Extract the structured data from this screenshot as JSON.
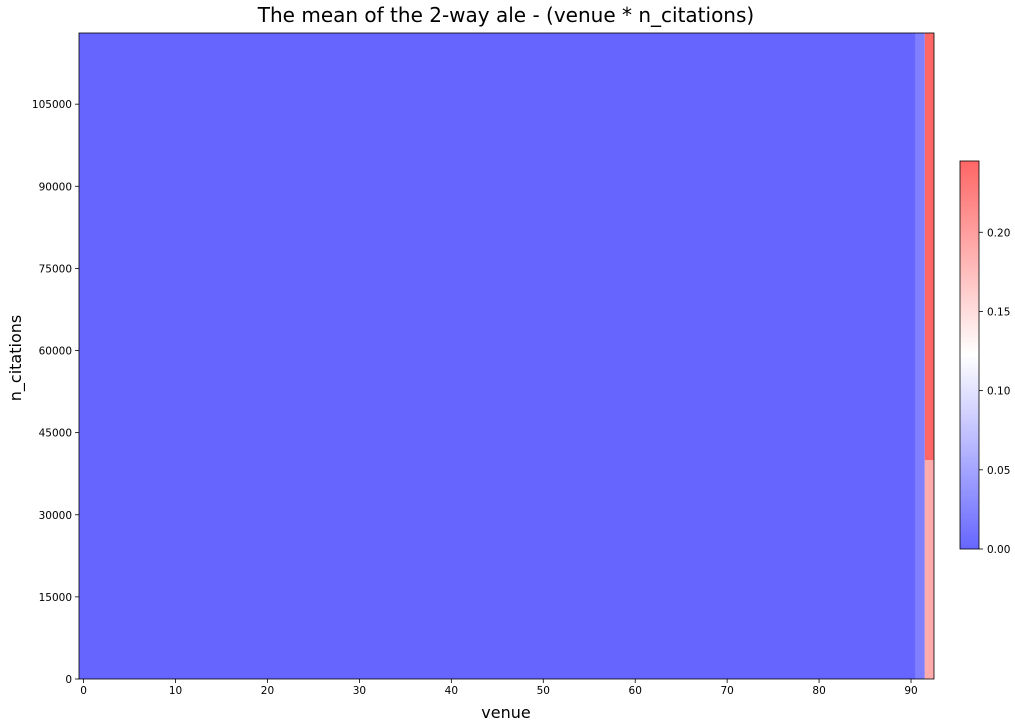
{
  "chart_data": {
    "type": "heatmap",
    "title": "The mean of the 2-way ale - (venue * n_citations)",
    "xlabel": "venue",
    "ylabel": "n_citations",
    "xlim": [
      -0.5,
      92.5
    ],
    "ylim": [
      0,
      118000
    ],
    "x_ticks": [
      0,
      10,
      20,
      30,
      40,
      50,
      60,
      70,
      80,
      90
    ],
    "y_ticks": [
      0,
      15000,
      30000,
      45000,
      60000,
      75000,
      90000,
      105000
    ],
    "colormap": [
      "#6666ff",
      "#ffffff",
      "#ff6666"
    ],
    "colorbar": {
      "range": [
        0,
        0.245
      ],
      "ticks": [
        0.0,
        0.05,
        0.1,
        0.15,
        0.2
      ],
      "tick_labels": [
        "0.00",
        "0.05",
        "0.10",
        "0.15",
        "0.20"
      ]
    },
    "cells": [
      {
        "x0": -0.5,
        "x1": 90.5,
        "y0": 0,
        "y1": 118000,
        "value": 0.0
      },
      {
        "x0": 90.5,
        "x1": 91.5,
        "y0": 0,
        "y1": 118000,
        "value": 0.02
      },
      {
        "x0": 91.5,
        "x1": 92.5,
        "y0": 0,
        "y1": 40000,
        "value": 0.19
      },
      {
        "x0": 91.5,
        "x1": 92.5,
        "y0": 40000,
        "y1": 118000,
        "value": 0.245
      }
    ]
  }
}
